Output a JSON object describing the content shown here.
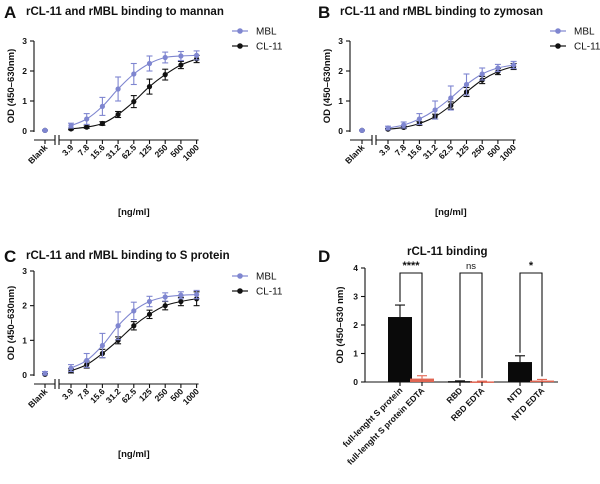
{
  "colors": {
    "mbl": "#7f86d0",
    "cl11": "#111111",
    "bar_black": "#0a0a0a",
    "bar_red": "#e06552"
  },
  "chart_data": [
    {
      "panel": "A",
      "type": "line",
      "title": "rCL-11 and rMBL binding to mannan",
      "xlabel": "[ng/ml]",
      "ylabel": "OD (450–630nm)",
      "x_ticks": [
        "Blank",
        "3.9",
        "7.8",
        "15.6",
        "31.2",
        "62.5",
        "125",
        "250",
        "500",
        "1000"
      ],
      "ylim": [
        0,
        3
      ],
      "y_ticks": [
        "0",
        "1",
        "2",
        "3"
      ],
      "legend_position": "top-right",
      "series": [
        {
          "name": "MBL",
          "color": "#7f86d0",
          "values": [
            0.02,
            0.18,
            0.4,
            0.82,
            1.4,
            1.9,
            2.25,
            2.45,
            2.5,
            2.52
          ],
          "errors": [
            0.02,
            0.08,
            0.18,
            0.3,
            0.4,
            0.35,
            0.25,
            0.18,
            0.15,
            0.15
          ]
        },
        {
          "name": "CL-11",
          "color": "#111111",
          "values": [
            0.02,
            0.07,
            0.13,
            0.25,
            0.55,
            0.98,
            1.48,
            1.88,
            2.2,
            2.4
          ],
          "errors": [
            0.01,
            0.03,
            0.04,
            0.06,
            0.1,
            0.2,
            0.25,
            0.18,
            0.12,
            0.12
          ]
        }
      ]
    },
    {
      "panel": "B",
      "type": "line",
      "title": "rCL-11 and rMBL binding to zymosan",
      "xlabel": "[ng/ml]",
      "ylabel": "OD (450–630nm)",
      "x_ticks": [
        "Blank",
        "3.9",
        "7.8",
        "15.6",
        "31.2",
        "62.5",
        "125",
        "250",
        "500",
        "1000"
      ],
      "ylim": [
        0,
        3
      ],
      "y_ticks": [
        "0",
        "1",
        "2",
        "3"
      ],
      "legend_position": "top-right",
      "series": [
        {
          "name": "MBL",
          "color": "#7f86d0",
          "values": [
            0.02,
            0.1,
            0.2,
            0.4,
            0.7,
            1.1,
            1.55,
            1.9,
            2.1,
            2.2
          ],
          "errors": [
            0.02,
            0.06,
            0.1,
            0.18,
            0.3,
            0.4,
            0.35,
            0.2,
            0.12,
            0.12
          ]
        },
        {
          "name": "CL-11",
          "color": "#111111",
          "values": [
            0.02,
            0.06,
            0.12,
            0.25,
            0.48,
            0.85,
            1.3,
            1.7,
            1.98,
            2.15
          ],
          "errors": [
            0.01,
            0.02,
            0.04,
            0.06,
            0.08,
            0.12,
            0.15,
            0.12,
            0.1,
            0.1
          ]
        }
      ]
    },
    {
      "panel": "C",
      "type": "line",
      "title": "rCL-11 and rMBL binding to S protein",
      "xlabel": "[ng/ml]",
      "ylabel": "OD (450–630nm)",
      "x_ticks": [
        "Blank",
        "3.9",
        "7.8",
        "15.6",
        "31.2",
        "62.5",
        "125",
        "250",
        "500",
        "1000"
      ],
      "ylim": [
        0,
        3
      ],
      "y_ticks": [
        "0",
        "1",
        "2",
        "3"
      ],
      "legend_position": "top-right",
      "series": [
        {
          "name": "MBL",
          "color": "#7f86d0",
          "values": [
            0.05,
            0.2,
            0.42,
            0.85,
            1.42,
            1.85,
            2.12,
            2.25,
            2.3,
            2.32
          ],
          "errors": [
            0.05,
            0.1,
            0.2,
            0.35,
            0.4,
            0.25,
            0.15,
            0.12,
            0.1,
            0.12
          ]
        },
        {
          "name": "CL-11",
          "color": "#111111",
          "values": [
            0.02,
            0.12,
            0.3,
            0.62,
            1.0,
            1.42,
            1.75,
            2.0,
            2.12,
            2.2
          ],
          "errors": [
            0.02,
            0.06,
            0.1,
            0.12,
            0.1,
            0.12,
            0.12,
            0.12,
            0.12,
            0.2
          ]
        }
      ]
    },
    {
      "panel": "D",
      "type": "bar",
      "title": "rCL-11 binding",
      "xlabel": "",
      "ylabel": "OD (450–630 nm)",
      "ylim": [
        0,
        4
      ],
      "y_ticks": [
        "0",
        "1",
        "2",
        "3",
        "4"
      ],
      "categories": [
        "full-lenght S protein",
        "full-lenght S protein EDTA",
        "RBD",
        "RBD EDTA",
        "NTD",
        "NTD EDTA"
      ],
      "values": [
        2.28,
        0.12,
        0.03,
        0.02,
        0.7,
        0.05
      ],
      "errors": [
        0.42,
        0.1,
        0.01,
        0.01,
        0.22,
        0.04
      ],
      "bar_colors": [
        "#0a0a0a",
        "#e06552",
        "#0a0a0a",
        "#e06552",
        "#0a0a0a",
        "#e06552"
      ],
      "significance": [
        {
          "pair": [
            0,
            1
          ],
          "label": "****"
        },
        {
          "pair": [
            2,
            3
          ],
          "label": "ns"
        },
        {
          "pair": [
            4,
            5
          ],
          "label": "*"
        }
      ]
    }
  ]
}
